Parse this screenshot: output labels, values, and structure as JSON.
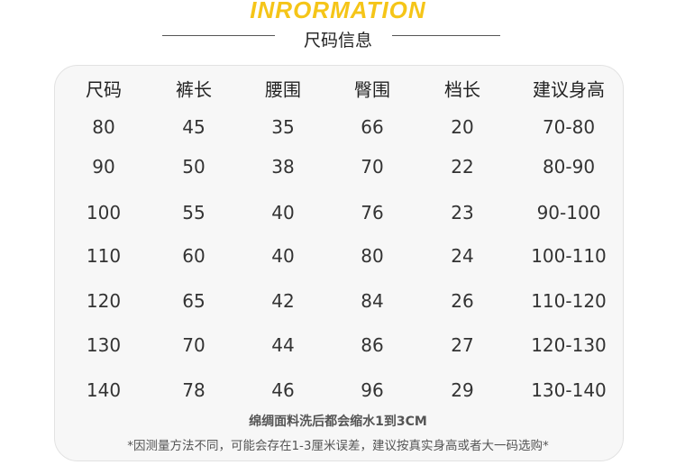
{
  "header": {
    "title": "INRORMATION",
    "subtitle": "尺码信息"
  },
  "table": {
    "columns": [
      "尺码",
      "裤长",
      "腰围",
      "臀围",
      "档长",
      "建议身高"
    ],
    "rows": [
      [
        80,
        45,
        35,
        66,
        20,
        "70-80"
      ],
      [
        90,
        50,
        38,
        70,
        22,
        "80-90"
      ],
      [
        100,
        55,
        40,
        76,
        23,
        "90-100"
      ],
      [
        110,
        60,
        40,
        80,
        24,
        "100-110"
      ],
      [
        120,
        65,
        42,
        84,
        26,
        "110-120"
      ],
      [
        130,
        70,
        44,
        86,
        27,
        "120-130"
      ],
      [
        140,
        78,
        46,
        96,
        29,
        "130-140"
      ]
    ]
  },
  "notes": [
    "绵绸面料洗后都会缩水1到3CM",
    "*因测量方法不同，可能会存在1-3厘米误差，建议按真实身高或者大一码选购*"
  ]
}
